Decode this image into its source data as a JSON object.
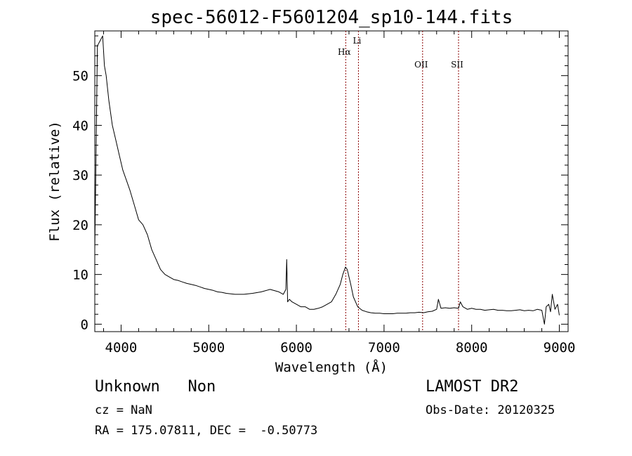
{
  "chart_data": {
    "type": "line",
    "title": "spec-56012-F5601204_sp10-144.fits",
    "xlabel": "Wavelength (Å)",
    "ylabel": "Flux (relative)",
    "xlim": [
      3700,
      9100
    ],
    "ylim": [
      -1.5,
      59
    ],
    "xticks": [
      4000,
      5000,
      6000,
      7000,
      8000,
      9000
    ],
    "yticks": [
      0,
      10,
      20,
      30,
      40,
      50
    ],
    "grid": false,
    "series": [
      {
        "color": "#000000",
        "x": [
          3700,
          3730,
          3760,
          3790,
          3810,
          3830,
          3860,
          3900,
          3940,
          3980,
          4020,
          4060,
          4100,
          4150,
          4200,
          4250,
          4300,
          4350,
          4400,
          4450,
          4500,
          4550,
          4600,
          4650,
          4700,
          4750,
          4800,
          4850,
          4900,
          4950,
          5000,
          5050,
          5100,
          5150,
          5200,
          5300,
          5400,
          5500,
          5600,
          5700,
          5800,
          5850,
          5880,
          5890,
          5900,
          5920,
          5950,
          6000,
          6050,
          6100,
          6150,
          6200,
          6250,
          6300,
          6350,
          6400,
          6450,
          6500,
          6530,
          6560,
          6580,
          6600,
          6620,
          6650,
          6700,
          6750,
          6800,
          6850,
          6900,
          6950,
          7000,
          7050,
          7100,
          7150,
          7200,
          7250,
          7300,
          7350,
          7400,
          7450,
          7500,
          7550,
          7600,
          7620,
          7650,
          7700,
          7750,
          7800,
          7850,
          7870,
          7900,
          7950,
          8000,
          8050,
          8100,
          8150,
          8200,
          8250,
          8300,
          8350,
          8400,
          8450,
          8500,
          8550,
          8600,
          8650,
          8700,
          8750,
          8800,
          8830,
          8850,
          8880,
          8900,
          8920,
          8950,
          8980,
          9000
        ],
        "y": [
          15,
          56,
          57,
          58,
          52,
          50,
          45,
          40,
          37,
          34,
          31,
          29,
          27,
          24,
          21,
          20,
          18,
          15,
          13,
          11,
          10,
          9.5,
          9,
          8.8,
          8.5,
          8.2,
          8,
          7.8,
          7.5,
          7.2,
          7,
          6.8,
          6.5,
          6.4,
          6.2,
          6,
          6,
          6.2,
          6.5,
          7,
          6.5,
          6,
          7,
          13,
          4.5,
          5,
          4.5,
          4,
          3.5,
          3.5,
          3,
          3,
          3.2,
          3.5,
          4,
          4.5,
          6,
          8,
          10,
          11.5,
          11,
          9.5,
          8,
          5.5,
          3.5,
          2.8,
          2.5,
          2.3,
          2.2,
          2.2,
          2.1,
          2.1,
          2.1,
          2.2,
          2.2,
          2.2,
          2.3,
          2.3,
          2.4,
          2.3,
          2.5,
          2.6,
          3,
          5,
          3.2,
          3.3,
          3.2,
          3.3,
          3.2,
          4.5,
          3.5,
          3,
          3.2,
          3,
          3,
          2.8,
          2.9,
          3,
          2.8,
          2.8,
          2.7,
          2.7,
          2.8,
          2.9,
          2.7,
          2.8,
          2.7,
          3,
          2.8,
          0,
          3.5,
          4,
          2.5,
          6,
          3,
          4,
          1.8
        ]
      }
    ],
    "annotations": [
      {
        "label": "Hα",
        "x": 6563
      },
      {
        "label": "Li",
        "x": 6708
      },
      {
        "label": "OII",
        "x": 7440
      },
      {
        "label": "SII",
        "x": 7850
      }
    ]
  },
  "info": {
    "class_line": "Unknown   Non",
    "survey": "LAMOST DR2",
    "cz": "cz = NaN",
    "obs_date": "Obs-Date: 20120325",
    "coords": "RA = 175.07811, DEC =  -0.50773"
  }
}
